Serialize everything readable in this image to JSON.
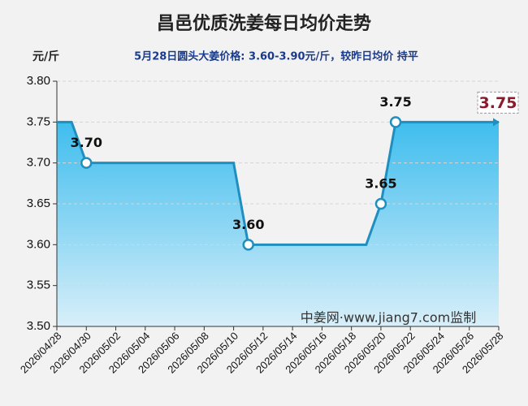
{
  "chart_data": {
    "type": "area-line",
    "title": "昌邑优质洗姜每日均价走势",
    "unit_label": "元/斤",
    "subtitle": "5月28日圆头大姜价格: 3.60-3.90元/斤，较昨日均价 持平",
    "watermark": "中姜网·www.jiang7.com监制",
    "categories": [
      "2026/04/28",
      null,
      "2026/04/30",
      null,
      "2026/05/02",
      null,
      "2026/05/04",
      null,
      "2026/05/06",
      null,
      "2026/05/08",
      null,
      "2026/05/10",
      null,
      "2026/05/12",
      null,
      "2026/05/14",
      null,
      "2026/05/16",
      null,
      "2026/05/18",
      null,
      "2026/05/20",
      null,
      "2026/05/22",
      null,
      "2026/05/24",
      null,
      "2026/05/26",
      null,
      "2026/05/28"
    ],
    "values": [
      3.75,
      3.75,
      3.7,
      3.7,
      3.7,
      3.7,
      3.7,
      3.7,
      3.7,
      3.7,
      3.7,
      3.7,
      3.7,
      3.6,
      3.6,
      3.6,
      3.6,
      3.6,
      3.6,
      3.6,
      3.6,
      3.6,
      3.65,
      3.75,
      3.75,
      3.75,
      3.75,
      3.75,
      3.75,
      3.75,
      3.75
    ],
    "value_labels": [
      null,
      null,
      "3.70",
      null,
      null,
      null,
      null,
      null,
      null,
      null,
      null,
      null,
      null,
      "3.60",
      null,
      null,
      null,
      null,
      null,
      null,
      null,
      null,
      "3.65",
      "3.75",
      null,
      null,
      null,
      null,
      null,
      null,
      "3.75"
    ],
    "color": "#1f8fc0",
    "ylim": [
      3.5,
      3.8
    ],
    "yticks": [
      {
        "value": 3.5,
        "label": "3.50"
      },
      {
        "value": 3.55,
        "label": "3.55"
      },
      {
        "value": 3.6,
        "label": "3.60"
      },
      {
        "value": 3.65,
        "label": "3.65"
      },
      {
        "value": 3.7,
        "label": "3.70"
      },
      {
        "value": 3.75,
        "label": "3.75"
      },
      {
        "value": 3.8,
        "label": "3.80"
      }
    ],
    "grid": true
  }
}
